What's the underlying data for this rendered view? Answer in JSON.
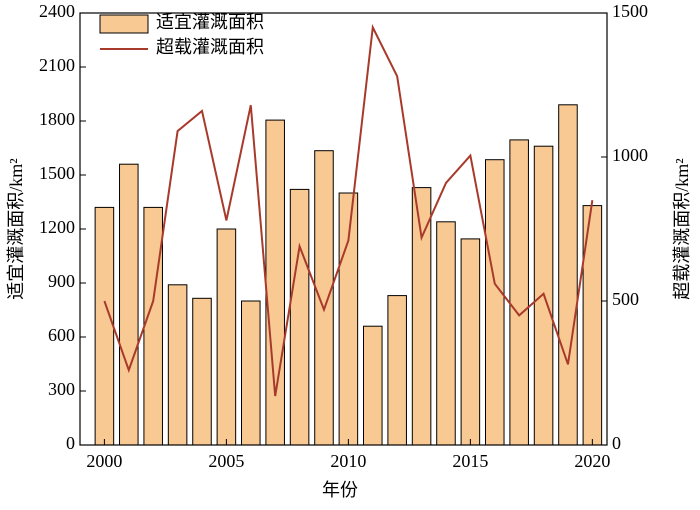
{
  "chart_data": {
    "type": "bar-line",
    "x": [
      2000,
      2001,
      2002,
      2003,
      2004,
      2005,
      2006,
      2007,
      2008,
      2009,
      2010,
      2011,
      2012,
      2013,
      2014,
      2015,
      2016,
      2017,
      2018,
      2019,
      2020
    ],
    "xlim": [
      1999,
      2020.6
    ],
    "xticks": [
      2000,
      2005,
      2010,
      2015,
      2020
    ],
    "xlabel": "年份",
    "ylabel": "适宜灌溉面积/km²",
    "ylim": [
      0,
      2400
    ],
    "yticks": [
      0,
      300,
      600,
      900,
      1200,
      1500,
      1800,
      2100,
      2400
    ],
    "y2label": "超载灌溉面积/km²",
    "y2lim": [
      0,
      1500
    ],
    "y2ticks": [
      0,
      500,
      1000,
      1500
    ],
    "legend": "upper left",
    "series": [
      {
        "name": "适宜灌溉面积",
        "type": "bar",
        "color": "#f9c993",
        "values": [
          1320,
          1560,
          1320,
          890,
          815,
          1200,
          800,
          1805,
          1420,
          1635,
          1400,
          660,
          830,
          1430,
          1240,
          1145,
          1585,
          1695,
          1660,
          1890,
          1330
        ]
      },
      {
        "name": "超载灌溉面积",
        "type": "line",
        "axis": "y2",
        "color": "#a83a2c",
        "values": [
          500,
          260,
          500,
          1090,
          1160,
          780,
          1180,
          170,
          690,
          470,
          710,
          1450,
          1280,
          720,
          910,
          1005,
          560,
          450,
          525,
          280,
          850
        ]
      }
    ]
  }
}
